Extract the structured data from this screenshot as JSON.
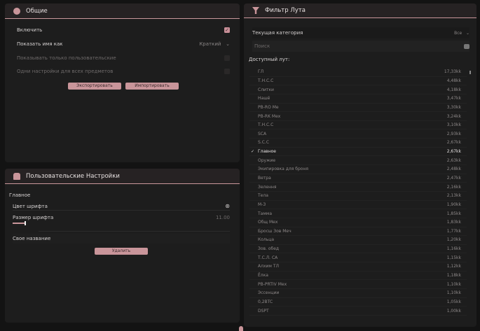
{
  "general": {
    "title": "Общие",
    "icon": "flower-icon",
    "enable_label": "Включить",
    "enable_checked": true,
    "show_name_label": "Показать имя как",
    "show_name_value": "Краткий",
    "only_custom_label": "Показывать только пользовательские",
    "only_custom_checked": false,
    "same_settings_label": "Одни настройки для всех предметов",
    "same_settings_checked": false,
    "export_label": "Экспортировать",
    "import_label": "Импортировать"
  },
  "custom": {
    "title": "Пользовательские Настройки",
    "icon": "user-group-icon",
    "section_label": "Главное",
    "font_color_label": "Цвет шрифта",
    "font_size_label": "Размер шрифта",
    "font_size_value": "11.00",
    "font_size_fraction": 0.1,
    "custom_name_label": "Свое название",
    "delete_label": "Удалить"
  },
  "filter": {
    "title": "Фильтр Лута",
    "icon": "funnel-icon",
    "category_label": "Текущая категория",
    "category_value": "Все",
    "search_placeholder": "Поиск",
    "available_label": "Доступный лут:",
    "items": [
      {
        "name": "ГЛ",
        "value": "17,33kk"
      },
      {
        "name": "Т.Н.С.С",
        "value": "4,48kk"
      },
      {
        "name": "Слитки",
        "value": "4,18kk"
      },
      {
        "name": "Нашё",
        "value": "3,47kk"
      },
      {
        "name": "PB-RO Ме",
        "value": "3,30kk"
      },
      {
        "name": "PB-RK Мех",
        "value": "3,24kk"
      },
      {
        "name": "Т.Н.С.С",
        "value": "3,10kk"
      },
      {
        "name": "SCA",
        "value": "2,93kk"
      },
      {
        "name": "S.C.C",
        "value": "2,67kk"
      },
      {
        "name": "Главное",
        "value": "2,67kk",
        "selected": true
      },
      {
        "name": "Оружие",
        "value": "2,63kk"
      },
      {
        "name": "Экипировка для броня",
        "value": "2,48kk"
      },
      {
        "name": "Ветра",
        "value": "2,47kk"
      },
      {
        "name": "Зелення",
        "value": "2,16kk"
      },
      {
        "name": "Тела",
        "value": "2,13kk"
      },
      {
        "name": "М-З",
        "value": "1,90kk"
      },
      {
        "name": "Тамма",
        "value": "1,85kk"
      },
      {
        "name": "Общ Мех",
        "value": "1,83kk"
      },
      {
        "name": "Бросш Зов Меч",
        "value": "1,77kk"
      },
      {
        "name": "Кольца",
        "value": "1,20kk"
      },
      {
        "name": "Зов. обед",
        "value": "1,16kk"
      },
      {
        "name": "Т.С.Л. СА",
        "value": "1,15kk"
      },
      {
        "name": "Алхим ТЛ",
        "value": "1,12kk"
      },
      {
        "name": "Ёлка",
        "value": "1,18kk"
      },
      {
        "name": "PB-PRTIV Мех",
        "value": "1,10kk"
      },
      {
        "name": "Эссенции",
        "value": "1,10kk"
      },
      {
        "name": "0,2BTC",
        "value": "1,05kk"
      },
      {
        "name": "DSPT",
        "value": "1,00kk"
      }
    ]
  }
}
